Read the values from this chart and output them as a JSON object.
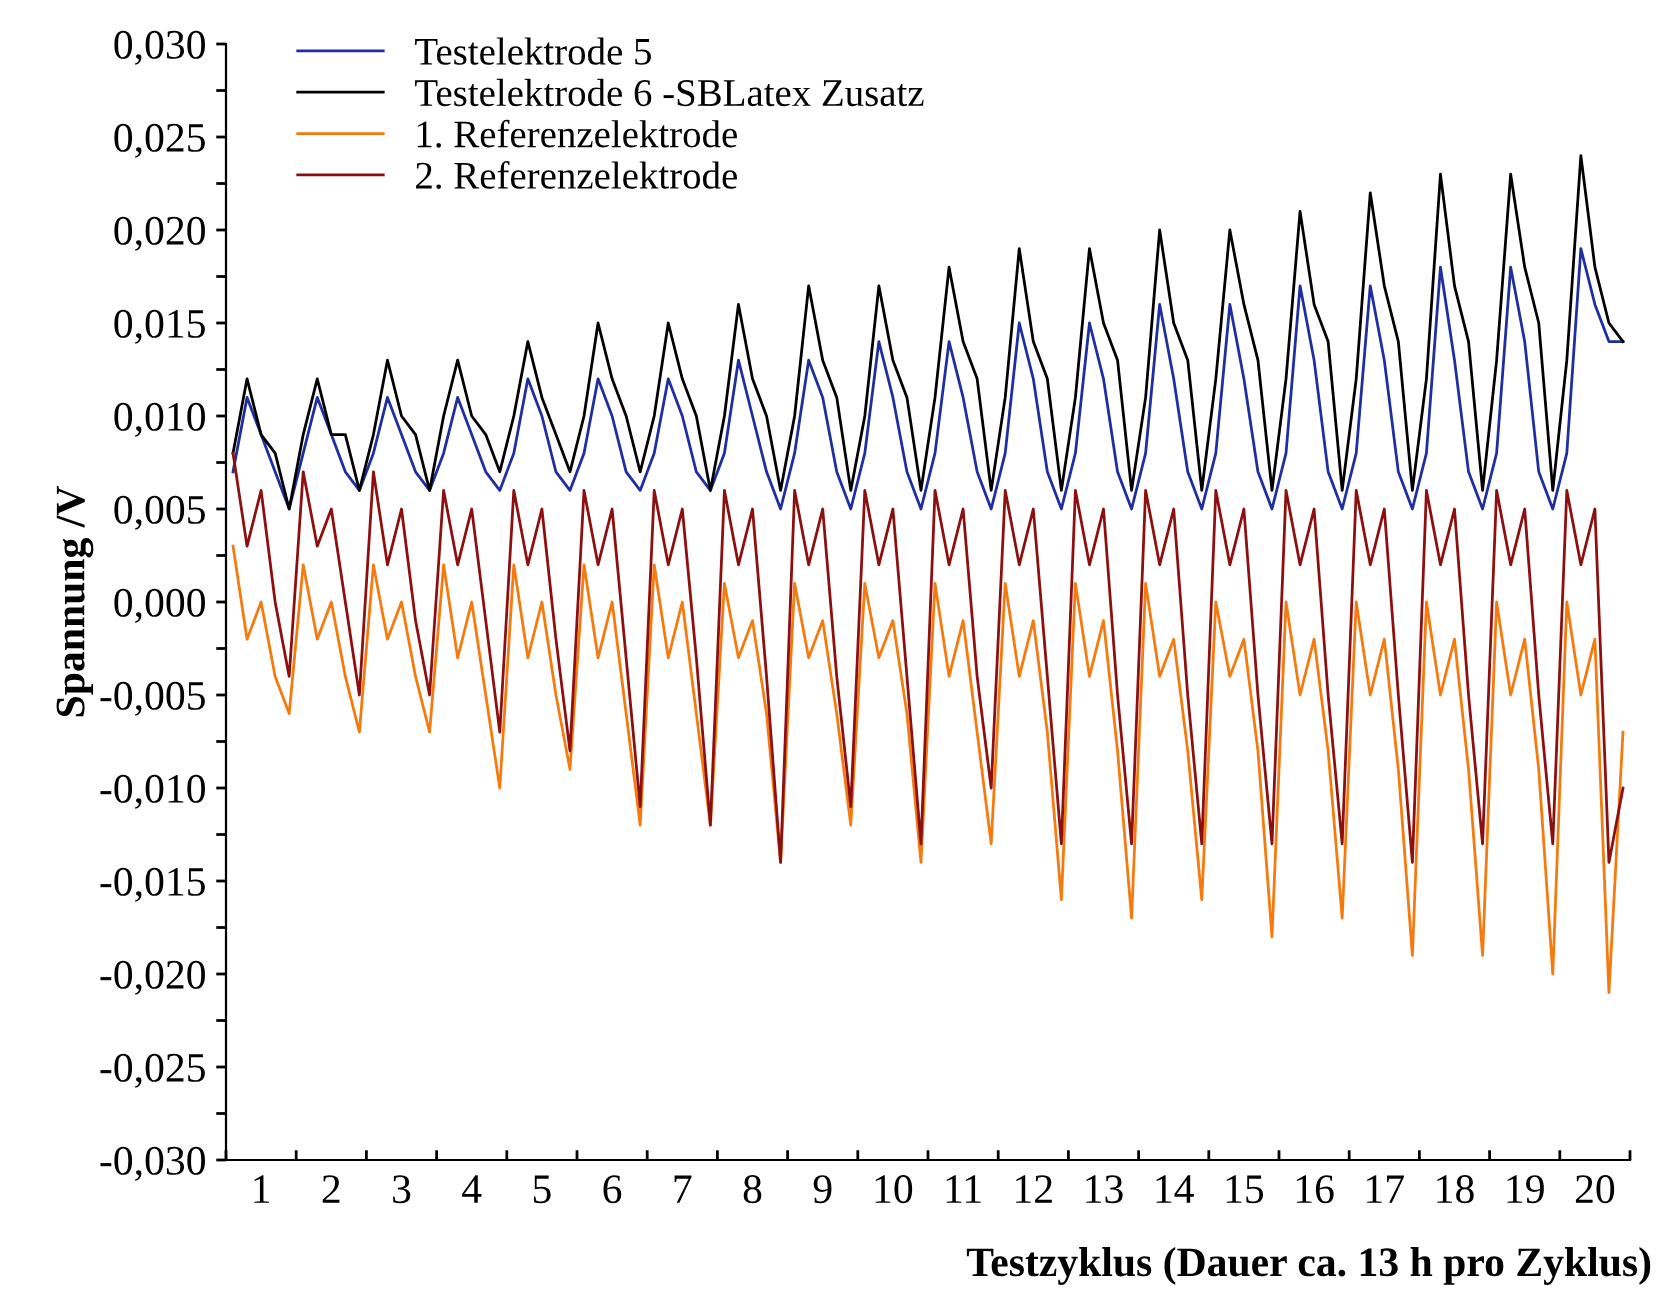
{
  "chart_data": {
    "type": "line",
    "xlabel": "Testzyklus (Dauer ca. 13 h pro Zyklus)",
    "ylabel": "Spannung /V",
    "legend": "top left",
    "grid": false,
    "marker": "none",
    "line_style": "solid",
    "xlim": [
      0,
      20
    ],
    "ylim": [
      -0.03,
      0.03
    ],
    "xticks": [
      {
        "value": 0,
        "label": null
      },
      {
        "value": 1,
        "label": null
      },
      {
        "value": 2,
        "label": null
      },
      {
        "value": 3,
        "label": null
      },
      {
        "value": 4,
        "label": null
      },
      {
        "value": 5,
        "label": null
      },
      {
        "value": 6,
        "label": null
      },
      {
        "value": 7,
        "label": null
      },
      {
        "value": 8,
        "label": null
      },
      {
        "value": 9,
        "label": null
      },
      {
        "value": 10,
        "label": null
      },
      {
        "value": 11,
        "label": null
      },
      {
        "value": 12,
        "label": null
      },
      {
        "value": 13,
        "label": null
      },
      {
        "value": 14,
        "label": null
      },
      {
        "value": 15,
        "label": null
      },
      {
        "value": 16,
        "label": null
      },
      {
        "value": 17,
        "label": null
      },
      {
        "value": 18,
        "label": null
      },
      {
        "value": 19,
        "label": null
      },
      {
        "value": 20,
        "label": null
      },
      {
        "value": 0.5,
        "label": "1"
      },
      {
        "value": 1.5,
        "label": "2"
      },
      {
        "value": 2.5,
        "label": "3"
      },
      {
        "value": 3.5,
        "label": "4"
      },
      {
        "value": 4.5,
        "label": "5"
      },
      {
        "value": 5.5,
        "label": "6"
      },
      {
        "value": 6.5,
        "label": "7"
      },
      {
        "value": 7.5,
        "label": "8"
      },
      {
        "value": 8.5,
        "label": "9"
      },
      {
        "value": 9.5,
        "label": "10"
      },
      {
        "value": 10.5,
        "label": "11"
      },
      {
        "value": 11.5,
        "label": "12"
      },
      {
        "value": 12.5,
        "label": "13"
      },
      {
        "value": 13.5,
        "label": "14"
      },
      {
        "value": 14.5,
        "label": "15"
      },
      {
        "value": 15.5,
        "label": "16"
      },
      {
        "value": 16.5,
        "label": "17"
      },
      {
        "value": 17.5,
        "label": "18"
      },
      {
        "value": 18.5,
        "label": "19"
      },
      {
        "value": 19.5,
        "label": "20"
      }
    ],
    "yticks": [
      {
        "value": -0.03,
        "label": "-0,030"
      },
      {
        "value": -0.025,
        "label": "-0,025"
      },
      {
        "value": -0.02,
        "label": "-0,020"
      },
      {
        "value": -0.015,
        "label": "-0,015"
      },
      {
        "value": -0.01,
        "label": "-0,010"
      },
      {
        "value": -0.005,
        "label": "-0,005"
      },
      {
        "value": 0,
        "label": "0,000"
      },
      {
        "value": 0.005,
        "label": "0,005"
      },
      {
        "value": 0.01,
        "label": "0,010"
      },
      {
        "value": 0.015,
        "label": "0,015"
      },
      {
        "value": 0.02,
        "label": "0,020"
      },
      {
        "value": 0.025,
        "label": "0,025"
      },
      {
        "value": 0.03,
        "label": "0,030"
      },
      {
        "value": -0.0275,
        "label": null
      },
      {
        "value": -0.0225,
        "label": null
      },
      {
        "value": -0.0175,
        "label": null
      },
      {
        "value": -0.0125,
        "label": null
      },
      {
        "value": -0.0075,
        "label": null
      },
      {
        "value": -0.0025,
        "label": null
      },
      {
        "value": 0.0025,
        "label": null
      },
      {
        "value": 0.0075,
        "label": null
      },
      {
        "value": 0.0125,
        "label": null
      },
      {
        "value": 0.0175,
        "label": null
      },
      {
        "value": 0.0225,
        "label": null
      },
      {
        "value": 0.0275,
        "label": null
      }
    ],
    "x": [
      0.1,
      0.3,
      0.5,
      0.7,
      0.9,
      1.1,
      1.3,
      1.5,
      1.7,
      1.9,
      2.1,
      2.3,
      2.5,
      2.7,
      2.9,
      3.1,
      3.3,
      3.5,
      3.7,
      3.9,
      4.1,
      4.3,
      4.5,
      4.7,
      4.9,
      5.1,
      5.3,
      5.5,
      5.7,
      5.9,
      6.1,
      6.3,
      6.5,
      6.7,
      6.9,
      7.1,
      7.3,
      7.5,
      7.7,
      7.9,
      8.1,
      8.3,
      8.5,
      8.7,
      8.9,
      9.1,
      9.3,
      9.5,
      9.7,
      9.9,
      10.1,
      10.3,
      10.5,
      10.7,
      10.9,
      11.1,
      11.3,
      11.5,
      11.7,
      11.9,
      12.1,
      12.3,
      12.5,
      12.7,
      12.9,
      13.1,
      13.3,
      13.5,
      13.7,
      13.9,
      14.1,
      14.3,
      14.5,
      14.7,
      14.9,
      15.1,
      15.3,
      15.5,
      15.7,
      15.9,
      16.1,
      16.3,
      16.5,
      16.7,
      16.9,
      17.1,
      17.3,
      17.5,
      17.7,
      17.9,
      18.1,
      18.3,
      18.5,
      18.7,
      18.9,
      19.1,
      19.3,
      19.5,
      19.7,
      19.9
    ],
    "series": [
      {
        "name": "Testelektrode 5",
        "color": "#1f2f9f",
        "values": [
          0.007,
          0.011,
          0.009,
          0.007,
          0.005,
          0.008,
          0.011,
          0.009,
          0.007,
          0.006,
          0.008,
          0.011,
          0.009,
          0.007,
          0.006,
          0.008,
          0.011,
          0.009,
          0.007,
          0.006,
          0.008,
          0.012,
          0.01,
          0.007,
          0.006,
          0.008,
          0.012,
          0.01,
          0.007,
          0.006,
          0.008,
          0.012,
          0.01,
          0.007,
          0.006,
          0.008,
          0.013,
          0.01,
          0.007,
          0.005,
          0.008,
          0.013,
          0.011,
          0.007,
          0.005,
          0.008,
          0.014,
          0.011,
          0.007,
          0.005,
          0.008,
          0.014,
          0.011,
          0.007,
          0.005,
          0.008,
          0.015,
          0.012,
          0.007,
          0.005,
          0.008,
          0.015,
          0.012,
          0.007,
          0.005,
          0.008,
          0.016,
          0.012,
          0.007,
          0.005,
          0.008,
          0.016,
          0.012,
          0.007,
          0.005,
          0.008,
          0.017,
          0.013,
          0.007,
          0.005,
          0.008,
          0.017,
          0.013,
          0.007,
          0.005,
          0.008,
          0.018,
          0.013,
          0.007,
          0.005,
          0.008,
          0.018,
          0.014,
          0.007,
          0.005,
          0.008,
          0.019,
          0.016,
          0.014,
          0.014
        ]
      },
      {
        "name": "Testelektrode 6 -SBLatex Zusatz",
        "color": "#000000",
        "values": [
          0.008,
          0.012,
          0.009,
          0.008,
          0.005,
          0.009,
          0.012,
          0.009,
          0.009,
          0.006,
          0.009,
          0.013,
          0.01,
          0.009,
          0.006,
          0.01,
          0.013,
          0.01,
          0.009,
          0.007,
          0.01,
          0.014,
          0.011,
          0.009,
          0.007,
          0.01,
          0.015,
          0.012,
          0.01,
          0.007,
          0.01,
          0.015,
          0.012,
          0.01,
          0.006,
          0.01,
          0.016,
          0.012,
          0.01,
          0.006,
          0.01,
          0.017,
          0.013,
          0.011,
          0.006,
          0.01,
          0.017,
          0.013,
          0.011,
          0.006,
          0.011,
          0.018,
          0.014,
          0.012,
          0.006,
          0.011,
          0.019,
          0.014,
          0.012,
          0.006,
          0.011,
          0.019,
          0.015,
          0.013,
          0.006,
          0.011,
          0.02,
          0.015,
          0.013,
          0.006,
          0.012,
          0.02,
          0.016,
          0.013,
          0.006,
          0.012,
          0.021,
          0.016,
          0.014,
          0.006,
          0.012,
          0.022,
          0.017,
          0.014,
          0.006,
          0.012,
          0.023,
          0.017,
          0.014,
          0.006,
          0.013,
          0.023,
          0.018,
          0.015,
          0.006,
          0.013,
          0.024,
          0.018,
          0.015,
          0.014
        ]
      },
      {
        "name": "1. Referenzelektrode",
        "color": "#f57a0f",
        "values": [
          0.003,
          -0.002,
          0.0,
          -0.004,
          -0.006,
          0.002,
          -0.002,
          0.0,
          -0.004,
          -0.007,
          0.002,
          -0.002,
          0.0,
          -0.004,
          -0.007,
          0.002,
          -0.003,
          0.0,
          -0.005,
          -0.01,
          0.002,
          -0.003,
          0.0,
          -0.005,
          -0.009,
          0.002,
          -0.003,
          0.0,
          -0.006,
          -0.012,
          0.002,
          -0.003,
          0.0,
          -0.006,
          -0.012,
          0.001,
          -0.003,
          -0.001,
          -0.006,
          -0.014,
          0.001,
          -0.003,
          -0.001,
          -0.006,
          -0.012,
          0.001,
          -0.003,
          -0.001,
          -0.006,
          -0.014,
          0.001,
          -0.004,
          -0.001,
          -0.007,
          -0.013,
          0.001,
          -0.004,
          -0.001,
          -0.007,
          -0.016,
          0.001,
          -0.004,
          -0.001,
          -0.008,
          -0.017,
          0.001,
          -0.004,
          -0.002,
          -0.008,
          -0.016,
          0.0,
          -0.004,
          -0.002,
          -0.008,
          -0.018,
          0.0,
          -0.005,
          -0.002,
          -0.008,
          -0.017,
          0.0,
          -0.005,
          -0.002,
          -0.009,
          -0.019,
          0.0,
          -0.005,
          -0.002,
          -0.009,
          -0.019,
          0.0,
          -0.005,
          -0.002,
          -0.009,
          -0.02,
          0.0,
          -0.005,
          -0.002,
          -0.021,
          -0.007
        ]
      },
      {
        "name": "2. Referenzelektrode",
        "color": "#8c1010",
        "values": [
          0.008,
          0.003,
          0.006,
          0.0,
          -0.004,
          0.007,
          0.003,
          0.005,
          0.0,
          -0.005,
          0.007,
          0.002,
          0.005,
          -0.001,
          -0.005,
          0.006,
          0.002,
          0.005,
          -0.001,
          -0.007,
          0.006,
          0.002,
          0.005,
          -0.002,
          -0.008,
          0.006,
          0.002,
          0.005,
          -0.003,
          -0.011,
          0.006,
          0.002,
          0.005,
          -0.003,
          -0.012,
          0.006,
          0.002,
          0.005,
          -0.004,
          -0.014,
          0.006,
          0.002,
          0.005,
          -0.004,
          -0.011,
          0.006,
          0.002,
          0.005,
          -0.004,
          -0.013,
          0.006,
          0.002,
          0.005,
          -0.004,
          -0.01,
          0.006,
          0.002,
          0.005,
          -0.004,
          -0.013,
          0.006,
          0.002,
          0.005,
          -0.005,
          -0.013,
          0.006,
          0.002,
          0.005,
          -0.005,
          -0.013,
          0.006,
          0.002,
          0.005,
          -0.005,
          -0.013,
          0.006,
          0.002,
          0.005,
          -0.005,
          -0.013,
          0.006,
          0.002,
          0.005,
          -0.005,
          -0.014,
          0.006,
          0.002,
          0.005,
          -0.005,
          -0.013,
          0.006,
          0.002,
          0.005,
          -0.005,
          -0.013,
          0.006,
          0.002,
          0.005,
          -0.014,
          -0.01
        ]
      }
    ]
  }
}
